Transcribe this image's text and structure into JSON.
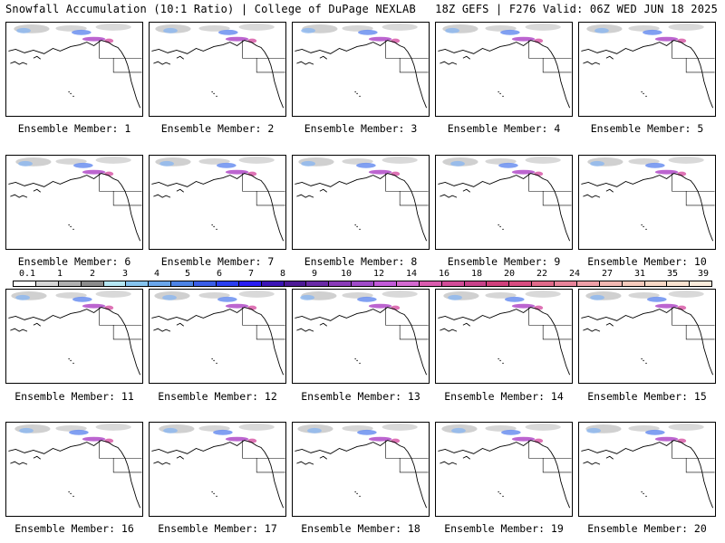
{
  "header": {
    "title_left": "Snowfall Accumulation (10:1 Ratio) | College of DuPage NEXLAB",
    "title_right": "18Z GEFS | F276 Valid: 06Z WED JUN 18 2025"
  },
  "legend": {
    "labels": [
      "0.1",
      "1",
      "2",
      "3",
      "4",
      "5",
      "6",
      "7",
      "8",
      "9",
      "10",
      "12",
      "14",
      "16",
      "18",
      "20",
      "22",
      "24",
      "27",
      "31",
      "35",
      "39"
    ],
    "colors": [
      "#ffffff",
      "#d6d6d6",
      "#b0b0b0",
      "#8c8c8c",
      "#b5e6f2",
      "#86c4ee",
      "#6aa6ea",
      "#4d84e6",
      "#3a5ee8",
      "#2a3ff0",
      "#2a1df2",
      "#3c14b6",
      "#4e1a96",
      "#6a2aa6",
      "#8a3ab8",
      "#a04ac8",
      "#c25ad8",
      "#d46ad0",
      "#da5cae",
      "#d24c98",
      "#c8428a",
      "#d0407c",
      "#d84c80",
      "#e06a8a",
      "#e8849a",
      "#eea0a8",
      "#f2b8b2",
      "#f6cabc",
      "#f8d8c6",
      "#fae2d0",
      "#fcecdc"
    ]
  },
  "panels": [
    {
      "label": "Ensemble Member: 1"
    },
    {
      "label": "Ensemble Member: 2"
    },
    {
      "label": "Ensemble Member: 3"
    },
    {
      "label": "Ensemble Member: 4"
    },
    {
      "label": "Ensemble Member: 5"
    },
    {
      "label": "Ensemble Member: 6"
    },
    {
      "label": "Ensemble Member: 7"
    },
    {
      "label": "Ensemble Member: 8"
    },
    {
      "label": "Ensemble Member: 9"
    },
    {
      "label": "Ensemble Member: 10"
    },
    {
      "label": "Ensemble Member: 11"
    },
    {
      "label": "Ensemble Member: 12"
    },
    {
      "label": "Ensemble Member: 13"
    },
    {
      "label": "Ensemble Member: 14"
    },
    {
      "label": "Ensemble Member: 15"
    },
    {
      "label": "Ensemble Member: 16"
    },
    {
      "label": "Ensemble Member: 17"
    },
    {
      "label": "Ensemble Member: 18"
    },
    {
      "label": "Ensemble Member: 19"
    },
    {
      "label": "Ensemble Member: 20"
    }
  ]
}
